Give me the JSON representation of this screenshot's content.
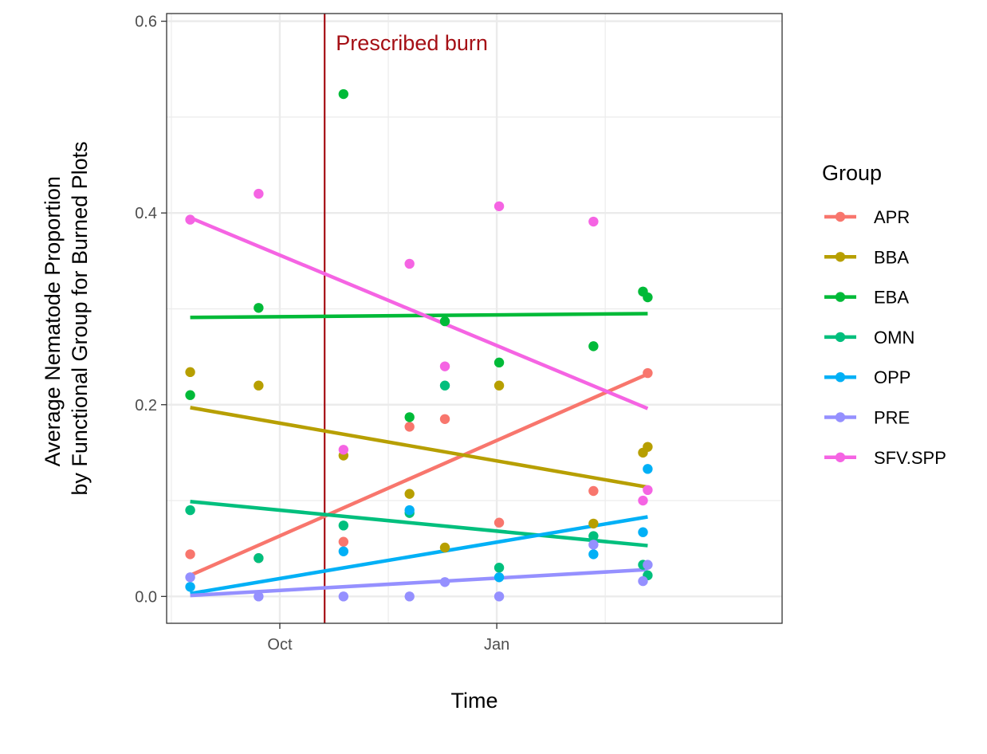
{
  "chart_data": {
    "type": "scatter",
    "title": "",
    "xlabel": "Time",
    "ylabel_lines": [
      "Average Nematode Proportion",
      "by Functional Group for Burned Plots"
    ],
    "x_unit": "date",
    "xlim": [
      "2020-08-14",
      "2021-05-02"
    ],
    "ylim": [
      -0.028,
      0.608
    ],
    "x_ticks": [
      {
        "label": "Oct",
        "value": "2020-10-01"
      },
      {
        "label": "Jan",
        "value": "2021-01-01"
      }
    ],
    "y_ticks": [
      {
        "label": "0.0",
        "value": 0.0
      },
      {
        "label": "0.2",
        "value": 0.2
      },
      {
        "label": "0.4",
        "value": 0.4
      },
      {
        "label": "0.6",
        "value": 0.6
      }
    ],
    "grid": true,
    "legend": {
      "title": "Group",
      "position": "right"
    },
    "annotations": [
      {
        "type": "vline",
        "x": "2020-10-20",
        "color": "#a50f15"
      },
      {
        "type": "text",
        "text": "Prescribed burn",
        "x": "2020-11-26",
        "y": 0.578,
        "color": "#a50f15"
      }
    ],
    "series": [
      {
        "name": "APR",
        "color": "#F8766D",
        "points": [
          [
            "2020-08-24",
            0.044
          ],
          [
            "2020-09-22",
            0.04
          ],
          [
            "2020-10-28",
            0.057
          ],
          [
            "2020-11-25",
            0.177
          ],
          [
            "2020-12-10",
            0.185
          ],
          [
            "2021-01-02",
            0.077
          ],
          [
            "2021-02-11",
            0.11
          ],
          [
            "2021-03-06",
            0.233
          ]
        ],
        "trend": [
          [
            "2020-08-24",
            0.022
          ],
          [
            "2021-03-06",
            0.232
          ]
        ]
      },
      {
        "name": "BBA",
        "color": "#B79F00",
        "points": [
          [
            "2020-08-24",
            0.234
          ],
          [
            "2020-09-22",
            0.22
          ],
          [
            "2020-10-28",
            0.147
          ],
          [
            "2020-11-25",
            0.107
          ],
          [
            "2020-12-10",
            0.051
          ],
          [
            "2021-01-02",
            0.22
          ],
          [
            "2021-02-11",
            0.076
          ],
          [
            "2021-03-04",
            0.15
          ],
          [
            "2021-03-06",
            0.156
          ]
        ],
        "trend": [
          [
            "2020-08-24",
            0.197
          ],
          [
            "2021-03-06",
            0.114
          ]
        ]
      },
      {
        "name": "EBA",
        "color": "#00BA38",
        "points": [
          [
            "2020-08-24",
            0.21
          ],
          [
            "2020-09-22",
            0.301
          ],
          [
            "2020-10-28",
            0.524
          ],
          [
            "2020-11-25",
            0.187
          ],
          [
            "2020-12-10",
            0.287
          ],
          [
            "2021-01-02",
            0.244
          ],
          [
            "2021-02-11",
            0.261
          ],
          [
            "2021-03-04",
            0.318
          ],
          [
            "2021-03-06",
            0.312
          ]
        ],
        "trend": [
          [
            "2020-08-24",
            0.291
          ],
          [
            "2021-03-06",
            0.295
          ]
        ]
      },
      {
        "name": "OMN",
        "color": "#00BF7D",
        "points": [
          [
            "2020-08-24",
            0.09
          ],
          [
            "2020-09-22",
            0.04
          ],
          [
            "2020-10-28",
            0.074
          ],
          [
            "2020-11-25",
            0.087
          ],
          [
            "2020-12-10",
            0.22
          ],
          [
            "2021-01-02",
            0.03
          ],
          [
            "2021-02-11",
            0.063
          ],
          [
            "2021-03-04",
            0.033
          ],
          [
            "2021-03-06",
            0.022
          ]
        ],
        "trend": [
          [
            "2020-08-24",
            0.099
          ],
          [
            "2021-03-06",
            0.053
          ]
        ]
      },
      {
        "name": "OPP",
        "color": "#00B0F6",
        "points": [
          [
            "2020-08-24",
            0.01
          ],
          [
            "2020-10-28",
            0.047
          ],
          [
            "2020-11-25",
            0.09
          ],
          [
            "2021-01-02",
            0.02
          ],
          [
            "2021-02-11",
            0.044
          ],
          [
            "2021-03-04",
            0.067
          ],
          [
            "2021-03-06",
            0.133
          ]
        ],
        "trend": [
          [
            "2020-08-24",
            0.003
          ],
          [
            "2021-03-06",
            0.083
          ]
        ]
      },
      {
        "name": "PRE",
        "color": "#9590FF",
        "points": [
          [
            "2020-08-24",
            0.02
          ],
          [
            "2020-09-22",
            0.0
          ],
          [
            "2020-10-28",
            0.0
          ],
          [
            "2020-11-25",
            0.0
          ],
          [
            "2020-12-10",
            0.015
          ],
          [
            "2021-01-02",
            0.0
          ],
          [
            "2021-02-11",
            0.054
          ],
          [
            "2021-03-04",
            0.016
          ],
          [
            "2021-03-06",
            0.033
          ]
        ],
        "trend": [
          [
            "2020-08-24",
            0.001
          ],
          [
            "2021-03-06",
            0.028
          ]
        ]
      },
      {
        "name": "SFV.SPP",
        "color": "#F564E3",
        "points": [
          [
            "2020-08-24",
            0.393
          ],
          [
            "2020-09-22",
            0.42
          ],
          [
            "2020-10-28",
            0.153
          ],
          [
            "2020-11-25",
            0.347
          ],
          [
            "2020-12-10",
            0.24
          ],
          [
            "2021-01-02",
            0.407
          ],
          [
            "2021-02-11",
            0.391
          ],
          [
            "2021-03-04",
            0.1
          ],
          [
            "2021-03-06",
            0.111
          ]
        ],
        "trend": [
          [
            "2020-08-24",
            0.395
          ],
          [
            "2021-03-06",
            0.196
          ]
        ]
      }
    ]
  }
}
